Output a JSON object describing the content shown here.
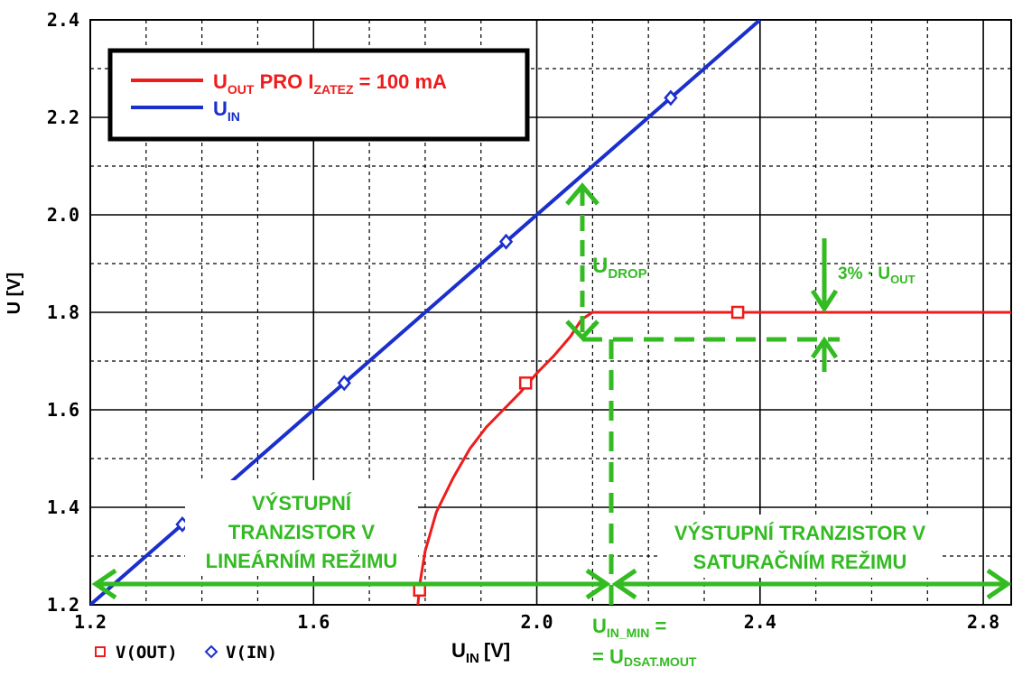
{
  "chart_data": {
    "type": "line",
    "ylabel_main": "U",
    "ylabel_unit": "[V]",
    "xlabel_main": "U",
    "xlabel_sub": "IN",
    "xlabel_unit": "[V]",
    "xlim": [
      1.2,
      2.85
    ],
    "ylim": [
      1.2,
      2.4
    ],
    "x_ticks": [
      "1.2",
      "1.6",
      "2.0",
      "2.4",
      "2.8"
    ],
    "x_tick_values": [
      1.2,
      1.6,
      2.0,
      2.4,
      2.8
    ],
    "y_ticks": [
      "1.2",
      "1.4",
      "1.6",
      "1.8",
      "2.0",
      "2.2",
      "2.4"
    ],
    "y_tick_values": [
      1.2,
      1.4,
      1.6,
      1.8,
      2.0,
      2.2,
      2.4
    ],
    "grid": true,
    "legend_position": "top-left",
    "colors": {
      "out": "#ee1c1c",
      "in": "#1a2fcc",
      "annotation": "#33bb22",
      "grid": "#000000"
    },
    "series": [
      {
        "key": "out",
        "label_main": "U",
        "label_sub1": "OUT",
        "label_mid": " PRO I",
        "label_sub2": "ZATEZ",
        "label_tail": " = 100 mA",
        "x": [
          1.787,
          1.79,
          1.8,
          1.82,
          1.85,
          1.88,
          1.91,
          1.94,
          1.97,
          2.0,
          2.03,
          2.06,
          2.08,
          2.1,
          2.85
        ],
        "values": [
          1.2,
          1.24,
          1.31,
          1.39,
          1.46,
          1.52,
          1.565,
          1.6,
          1.635,
          1.675,
          1.71,
          1.75,
          1.785,
          1.8,
          1.8
        ],
        "marker_x": [
          1.79,
          1.98,
          2.36
        ],
        "marker_values": [
          1.23,
          1.655,
          1.8
        ]
      },
      {
        "key": "in",
        "label_main": "U",
        "label_sub1": "IN",
        "x": [
          1.2,
          2.4
        ],
        "values": [
          1.2,
          2.4
        ],
        "marker_x": [
          1.365,
          1.655,
          1.945,
          2.24
        ],
        "marker_values": [
          1.365,
          1.655,
          1.945,
          2.24
        ]
      }
    ],
    "bottom_legend": {
      "out": "V(OUT)",
      "in": "V(IN)"
    },
    "annotations": {
      "udrop_main": "U",
      "udrop_sub": "DROP",
      "pct_main": "3% · U",
      "pct_sub": "OUT",
      "linear_lines": [
        "VÝSTUPNÍ",
        "TRANZISTOR V",
        "LINEÁRNÍM REŽIMU"
      ],
      "saturation_lines": [
        "VÝSTUPNÍ TRANZISTOR V",
        "SATURAČNÍM REŽIMU"
      ],
      "uinmin_main": "U",
      "uinmin_sub": "IN_MIN",
      "uinmin_tail": " =",
      "udsat_prefix": "= U",
      "udsat_sub": "DSAT.MOUT"
    }
  }
}
